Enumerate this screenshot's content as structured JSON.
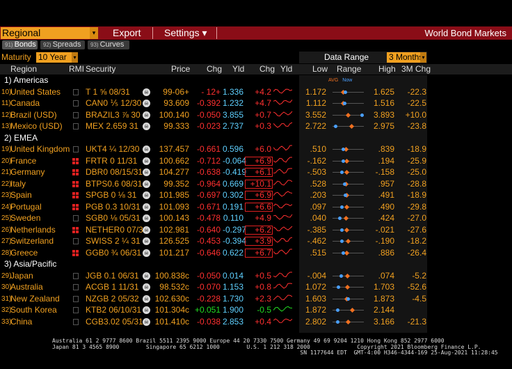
{
  "toolbar": {
    "regional_label": "Regional",
    "export_label": "Export",
    "settings_label": "Settings ▾",
    "screen_title": "World Bond Markets"
  },
  "tabs": [
    {
      "num": "91)",
      "label": "Bonds"
    },
    {
      "num": "92)",
      "label": "Spreads"
    },
    {
      "num": "93)",
      "label": "Curves"
    }
  ],
  "maturity": {
    "label": "Maturity",
    "value": "10 Year"
  },
  "data_range": {
    "label": "Data Range",
    "value": "3 Months"
  },
  "columns": {
    "region": "Region",
    "rmi": "RMI",
    "security": "Security",
    "price": "Price",
    "chg": "Chg",
    "yld": "Yld",
    "chg2": "Chg",
    "yld2": "Yld",
    "low": "Low",
    "range": "Range",
    "high": "High",
    "chg3m": "3M Chg"
  },
  "legend": {
    "avg": "AVG",
    "now": "Now"
  },
  "groups": [
    {
      "label": "1) Americas"
    },
    {
      "label": "2) EMEA"
    },
    {
      "label": "3) Asia/Pacific"
    }
  ],
  "rows": [
    {
      "num": "10)",
      "region": "United States",
      "security": "T 1 ⅝ 08/31",
      "price": "99-06+",
      "chg": "- 12+",
      "yld": "1.336",
      "ychg": "+4.2",
      "low": "1.172",
      "high": "1.625",
      "chg3m": "-22.3",
      "avg": 0.28,
      "now": 0.35
    },
    {
      "num": "11)",
      "region": "Canada",
      "security": "CAN0 ⅕ 12/30",
      "price": "93.609",
      "chg": "-0.392",
      "yld": "1.232",
      "ychg": "+4.7",
      "low": "1.112",
      "high": "1.516",
      "chg3m": "-22.5",
      "avg": 0.28,
      "now": 0.33
    },
    {
      "num": "12)",
      "region": "Brazil (USD)",
      "security": "BRAZIL3 ⅞ 30",
      "price": "100.140",
      "chg": "-0.050",
      "yld": "3.855",
      "ychg": "+0.7",
      "low": "3.552",
      "high": "3.893",
      "chg3m": "+10.0",
      "avg": 0.45,
      "now": 0.88
    },
    {
      "num": "13)",
      "region": "Mexico (USD)",
      "security": "MEX 2.659 31",
      "price": "99.333",
      "chg": "-0.023",
      "yld": "2.737",
      "ychg": "+0.3",
      "low": "2.722",
      "high": "2.975",
      "chg3m": "-23.8",
      "avg": 0.55,
      "now": 0.05
    },
    {
      "num": "19)",
      "region": "United Kingdom",
      "security": "UKT4 ¼ 12/30",
      "price": "137.457",
      "chg": "-0.661",
      "yld": "0.596",
      "ychg": "+6.0",
      "low": ".510",
      "high": ".839",
      "chg3m": "-18.9",
      "avg": 0.38,
      "now": 0.28
    },
    {
      "num": "20)",
      "region": "France",
      "security": "FRTR 0 11/31",
      "price": "100.662",
      "chg": "-0.712",
      "yld": "-0.064",
      "ychg": "+6.9",
      "low": "-.162",
      "high": ".194",
      "chg3m": "-25.9",
      "avg": 0.4,
      "now": 0.28
    },
    {
      "num": "21)",
      "region": "Germany",
      "security": "DBR0 08/15/31",
      "price": "104.277",
      "chg": "-0.638",
      "yld": "-0.419",
      "ychg": "+6.1",
      "low": "-.503",
      "high": "-.158",
      "chg3m": "-25.0",
      "avg": 0.4,
      "now": 0.25
    },
    {
      "num": "22)",
      "region": "Italy",
      "security": "BTPS0.6 08/31",
      "price": "99.352",
      "chg": "-0.964",
      "yld": "0.669",
      "ychg": "+10.1",
      "low": ".528",
      "high": ".957",
      "chg3m": "-28.8",
      "avg": 0.38,
      "now": 0.33
    },
    {
      "num": "23)",
      "region": "Spain",
      "security": "SPGB 0 ⅛ 31",
      "price": "101.985",
      "chg": "-0.697",
      "yld": "0.302",
      "ychg": "+6.9",
      "low": ".203",
      "high": ".491",
      "chg3m": "-18.9",
      "avg": 0.4,
      "now": 0.35
    },
    {
      "num": "24)",
      "region": "Portugal",
      "security": "PGB 0.3 10/31",
      "price": "101.093",
      "chg": "-0.671",
      "yld": "0.191",
      "ychg": "+6.6",
      "low": ".097",
      "high": ".490",
      "chg3m": "-29.8",
      "avg": 0.4,
      "now": 0.25
    },
    {
      "num": "25)",
      "region": "Sweden",
      "security": "SGB0 ⅛ 05/31",
      "price": "100.143",
      "chg": "-0.478",
      "yld": "0.110",
      "ychg": "+4.9",
      "low": ".040",
      "high": ".424",
      "chg3m": "-27.0",
      "avg": 0.38,
      "now": 0.18
    },
    {
      "num": "26)",
      "region": "Netherlands",
      "security": "NETHER0 07/31",
      "price": "102.981",
      "chg": "-0.640",
      "yld": "-0.297",
      "ychg": "+6.2",
      "low": "-.385",
      "high": "-.021",
      "chg3m": "-27.6",
      "avg": 0.4,
      "now": 0.25
    },
    {
      "num": "27)",
      "region": "Switzerland",
      "security": "SWISS 2 ¼ 31",
      "price": "126.525",
      "chg": "-0.453",
      "yld": "-0.394",
      "ychg": "+3.9",
      "low": "-.462",
      "high": "-.190",
      "chg3m": "-18.2",
      "avg": 0.45,
      "now": 0.25
    },
    {
      "num": "28)",
      "region": "Greece",
      "security": "GGB0 ¾ 06/31",
      "price": "101.217",
      "chg": "-0.646",
      "yld": "0.622",
      "ychg": "+6.7",
      "low": ".515",
      "high": ".886",
      "chg3m": "-26.4",
      "avg": 0.4,
      "now": 0.28
    },
    {
      "num": "29)",
      "region": "Japan",
      "security": "JGB 0.1 06/31",
      "price": "100.838c",
      "chg": "-0.050",
      "yld": "0.014",
      "ychg": "+0.5",
      "low": "-.004",
      "high": ".074",
      "chg3m": "-5.2",
      "avg": 0.42,
      "now": 0.23
    },
    {
      "num": "30)",
      "region": "Australia",
      "security": "ACGB 1 11/31",
      "price": "98.532c",
      "chg": "-0.070",
      "yld": "1.153",
      "ychg": "+0.8",
      "low": "1.072",
      "high": "1.703",
      "chg3m": "-52.6",
      "avg": 0.42,
      "now": 0.13
    },
    {
      "num": "31)",
      "region": "New Zealand",
      "security": "NZGB 2 05/32",
      "price": "102.630c",
      "chg": "-0.228",
      "yld": "1.730",
      "ychg": "+2.3",
      "low": "1.603",
      "high": "1.873",
      "chg3m": "-4.5",
      "avg": 0.4,
      "now": 0.45
    },
    {
      "num": "32)",
      "region": "South Korea",
      "security": "KTB2 06/10/31",
      "price": "101.304c",
      "chg": "+0.051",
      "yld": "1.900",
      "ychg": "-0.5",
      "low": "1.872",
      "high": "2.144",
      "chg3m": "",
      "avg": 0.58,
      "now": 0.1
    },
    {
      "num": "33)",
      "region": "China",
      "security": "CGB3.02 05/31",
      "price": "101.410c",
      "chg": "-0.038",
      "yld": "2.853",
      "ychg": "+0.4",
      "low": "2.802",
      "high": "3.166",
      "chg3m": "-21.3",
      "avg": 0.45,
      "now": 0.12
    }
  ],
  "footer": {
    "line1": "Australia 61 2 9777 8600 Brazil 5511 2395 9000 Europe 44 20 7330 7500 Germany 49 69 9204 1210 Hong Kong 852 2977 6000",
    "line2": "Japan 81 3 4565 8900        Singapore 65 6212 1000        U.S. 1 212 318 2000              Copyright 2021 Bloomberg Finance L.P.",
    "line3": "                                                                          SN 1177644 EDT  GMT-4:00 H346-4344-169 25-Aug-2021 11:28:45"
  }
}
